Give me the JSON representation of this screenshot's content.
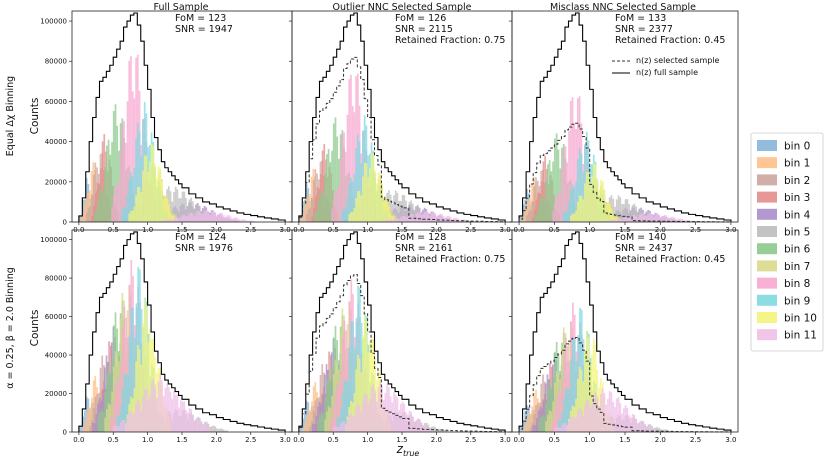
{
  "chart_data": {
    "type": "histogram-grid",
    "xlabel": "z_true",
    "xlabel_main": "z",
    "xlabel_sub": "true",
    "ylabel": "Counts",
    "xlim": [
      -0.1,
      3.1
    ],
    "ylim": [
      0,
      105000
    ],
    "xticks": [
      "0.0",
      "0.5",
      "1.0",
      "1.5",
      "2.0",
      "2.5",
      "3.0"
    ],
    "xtick_values": [
      0.0,
      0.5,
      1.0,
      1.5,
      2.0,
      2.5,
      3.0
    ],
    "yticks": [
      "0",
      "20000",
      "40000",
      "60000",
      "80000",
      "100000"
    ],
    "ytick_values": [
      0,
      20000,
      40000,
      60000,
      80000,
      100000
    ],
    "column_titles": [
      "Full Sample",
      "Outlier NNC Selected Sample",
      "Misclass NNC Selected Sample"
    ],
    "row_labels": [
      "Equal Δχ Binning",
      "α = 0.25, β = 2.0 Binning"
    ],
    "annotations": [
      [
        [
          "FoM = 123",
          "SNR = 1947"
        ],
        [
          "FoM = 126",
          "SNR = 2115",
          "Retained Fraction: 0.75"
        ],
        [
          "FoM = 133",
          "SNR = 2377",
          "Retained Fraction: 0.45"
        ]
      ],
      [
        [
          "FoM = 124",
          "SNR = 1976"
        ],
        [
          "FoM = 128",
          "SNR = 2161",
          "Retained Fraction: 0.75"
        ],
        [
          "FoM = 140",
          "SNR = 2437",
          "Retained Fraction: 0.45"
        ]
      ]
    ],
    "full_nz": {
      "edges": [
        0.0,
        0.05,
        0.1,
        0.15,
        0.2,
        0.25,
        0.3,
        0.35,
        0.4,
        0.45,
        0.5,
        0.55,
        0.6,
        0.65,
        0.7,
        0.75,
        0.8,
        0.85,
        0.9,
        0.95,
        1.0,
        1.05,
        1.1,
        1.15,
        1.2,
        1.25,
        1.3,
        1.35,
        1.4,
        1.45,
        1.5,
        1.6,
        1.7,
        1.8,
        1.9,
        2.0,
        2.1,
        2.2,
        2.3,
        2.4,
        2.5,
        2.6,
        2.7,
        2.8,
        2.9,
        3.0
      ],
      "counts": [
        3000,
        12000,
        25000,
        40000,
        52000,
        62000,
        70000,
        72000,
        75000,
        78000,
        82000,
        86000,
        90000,
        97000,
        100000,
        103000,
        104000,
        98000,
        90000,
        78000,
        66000,
        52000,
        42000,
        36000,
        30000,
        27000,
        25000,
        23000,
        21000,
        19000,
        17000,
        14000,
        12000,
        10000,
        9000,
        7500,
        6500,
        5500,
        4500,
        3800,
        3200,
        2600,
        2000,
        1500,
        1000
      ]
    },
    "selected_nz": {
      "name": "n(z) selected sample",
      "retained_fraction": [
        0.75,
        0.45
      ]
    },
    "bins": {
      "names": [
        "bin 0",
        "bin 1",
        "bin 2",
        "bin 3",
        "bin 4",
        "bin 5",
        "bin 6",
        "bin 7",
        "bin 8",
        "bin 9",
        "bin 10",
        "bin 11"
      ],
      "colors": [
        "#86b4d9",
        "#ffbf86",
        "#cda59e",
        "#e58c8c",
        "#a98dc9",
        "#bdbdbd",
        "#8cc98c",
        "#d9d98c",
        "#f7a8d0",
        "#7fd8e0",
        "#f4f47a",
        "#efbfe8"
      ],
      "equal_chi_centers": [
        0.12,
        0.22,
        0.3,
        0.38,
        1.62,
        1.35,
        0.55,
        1.1,
        0.8,
        0.95,
        1.05,
        1.85
      ],
      "alpha_beta_centers": [
        0.15,
        0.25,
        0.35,
        0.45,
        0.52,
        1.45,
        0.6,
        0.7,
        0.78,
        0.88,
        1.0,
        1.2
      ],
      "equal_chi_peaks": [
        22000,
        30000,
        38000,
        45000,
        10000,
        18000,
        60000,
        30000,
        90000,
        60000,
        40000,
        6000
      ],
      "alpha_beta_peaks": [
        20000,
        30000,
        40000,
        48000,
        55000,
        12000,
        70000,
        80000,
        90000,
        88000,
        72000,
        30000
      ]
    },
    "legend": {
      "location": "right",
      "bin_entries": [
        "bin 0",
        "bin 1",
        "bin 2",
        "bin 3",
        "bin 4",
        "bin 5",
        "bin 6",
        "bin 7",
        "bin 8",
        "bin 9",
        "bin 10",
        "bin 11"
      ],
      "line_entries": [
        "n(z) selected sample",
        "n(z) full sample"
      ]
    }
  }
}
